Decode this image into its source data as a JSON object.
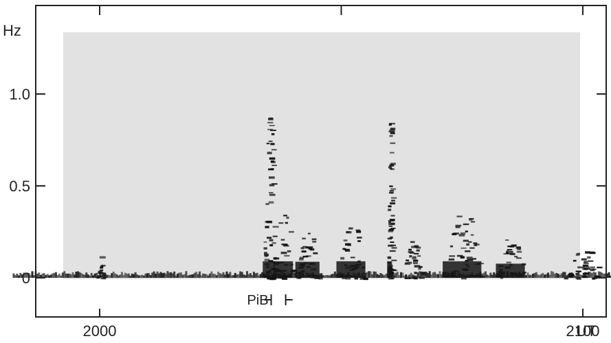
{
  "chart_data": {
    "type": "heatmap",
    "title": "",
    "ylabel": "Hz",
    "xlabel": "UT",
    "ylim": [
      0,
      1.3
    ],
    "xlim": [
      1980,
      2110
    ],
    "y_ticks": [
      {
        "value": 0,
        "label": "0"
      },
      {
        "value": 0.5,
        "label": "0.5"
      },
      {
        "value": 1.0,
        "label": "1.0"
      }
    ],
    "x_ticks": [
      {
        "value": 2000,
        "label": "2000"
      },
      {
        "value": 2100,
        "label": "2100"
      }
    ],
    "annotations": [
      {
        "text": "PiB",
        "x_start": 2035.5,
        "x_end": 2038.5
      }
    ],
    "emission_bursts": [
      {
        "x_center": 2000,
        "x_width": 1.5,
        "f_max": 0.12
      },
      {
        "x_center": 2035,
        "x_width": 2.5,
        "f_max": 0.9
      },
      {
        "x_center": 2038,
        "x_width": 4.0,
        "f_max": 0.35
      },
      {
        "x_center": 2043,
        "x_width": 5.0,
        "f_max": 0.25
      },
      {
        "x_center": 2052,
        "x_width": 6.0,
        "f_max": 0.28
      },
      {
        "x_center": 2060,
        "x_width": 1.0,
        "f_max": 0.85
      },
      {
        "x_center": 2065,
        "x_width": 5.0,
        "f_max": 0.2
      },
      {
        "x_center": 2075,
        "x_width": 8.0,
        "f_max": 0.35
      },
      {
        "x_center": 2085,
        "x_width": 6.0,
        "f_max": 0.22
      },
      {
        "x_center": 2100,
        "x_width": 8.0,
        "f_max": 0.15
      }
    ],
    "grid": false,
    "legend": "none"
  }
}
